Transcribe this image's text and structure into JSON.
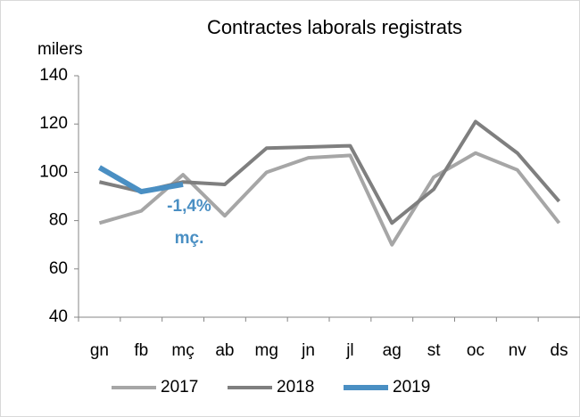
{
  "chart_data": {
    "type": "line",
    "title": "Contractes laborals registrats",
    "y_label": "milers",
    "categories": [
      "gn",
      "fb",
      "mç",
      "ab",
      "mg",
      "jn",
      "jl",
      "ag",
      "st",
      "oc",
      "nv",
      "ds"
    ],
    "series": [
      {
        "name": "2017",
        "color": "#a6a6a6",
        "values": [
          79,
          84,
          99,
          82,
          100,
          106,
          107,
          70,
          98,
          108,
          101,
          79
        ]
      },
      {
        "name": "2018",
        "color": "#7f7f7f",
        "values": [
          96,
          92,
          96,
          95,
          110,
          110.5,
          111,
          79,
          93,
          121,
          108,
          88
        ]
      },
      {
        "name": "2019",
        "color": "#4a8fc3",
        "values": [
          102,
          92,
          95,
          null,
          null,
          null,
          null,
          null,
          null,
          null,
          null,
          null
        ]
      }
    ],
    "annotations": [
      "-1,4%",
      "mç."
    ],
    "ylim": [
      40,
      140
    ],
    "yticks": [
      40,
      60,
      80,
      100,
      120,
      140
    ],
    "grid": false
  }
}
